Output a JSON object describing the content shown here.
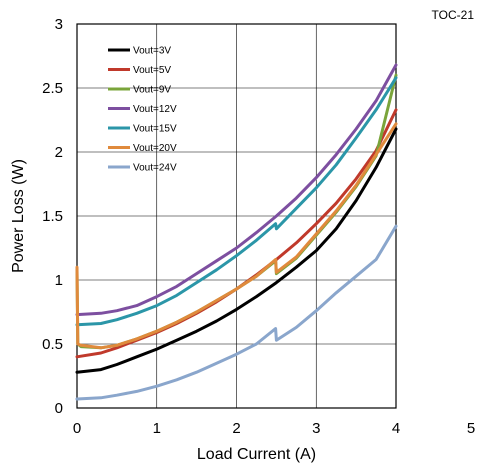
{
  "chart_data": {
    "type": "line",
    "tag": "TOC-21",
    "xlabel": "Load Current (A)",
    "ylabel": "Power Loss (W)",
    "xlim": [
      0,
      5
    ],
    "ylim": [
      0,
      3
    ],
    "x_ticks": [
      "0",
      "1",
      "2",
      "3",
      "4",
      "5"
    ],
    "y_ticks": [
      "0",
      "0.5",
      "1",
      "1.5",
      "2",
      "2.5",
      "3"
    ],
    "grid": true,
    "legend_position": "top-left",
    "series": [
      {
        "name": "Vout=3V",
        "color": "#000000",
        "x": [
          0,
          0.3,
          0.5,
          0.75,
          1,
          1.25,
          1.5,
          1.75,
          2,
          2.25,
          2.5,
          2.75,
          3,
          3.25,
          3.5,
          3.75,
          4
        ],
        "y": [
          0.28,
          0.3,
          0.34,
          0.4,
          0.46,
          0.53,
          0.6,
          0.68,
          0.77,
          0.87,
          0.98,
          1.1,
          1.23,
          1.4,
          1.62,
          1.88,
          2.18
        ]
      },
      {
        "name": "Vout=5V",
        "color": "#c0392b",
        "x": [
          0,
          0.3,
          0.5,
          0.75,
          1,
          1.25,
          1.5,
          1.75,
          2,
          2.25,
          2.5,
          2.75,
          3,
          3.25,
          3.5,
          3.75,
          4
        ],
        "y": [
          0.4,
          0.43,
          0.47,
          0.53,
          0.59,
          0.66,
          0.74,
          0.83,
          0.93,
          1.04,
          1.16,
          1.29,
          1.44,
          1.6,
          1.79,
          2.01,
          2.33
        ]
      },
      {
        "name": "Vout=9V",
        "color": "#7aa43a",
        "x": [
          0,
          0.01,
          0.05,
          0.3,
          0.5,
          0.75,
          1,
          1.25,
          1.5,
          1.75,
          2,
          2.25,
          2.49,
          2.5,
          2.75,
          3,
          3.25,
          3.5,
          3.75,
          4
        ],
        "y": [
          1.08,
          0.5,
          0.48,
          0.47,
          0.49,
          0.54,
          0.6,
          0.67,
          0.75,
          0.84,
          0.93,
          1.03,
          1.15,
          1.05,
          1.17,
          1.35,
          1.53,
          1.73,
          1.97,
          2.6
        ]
      },
      {
        "name": "Vout=12V",
        "color": "#7d4fa0",
        "x": [
          0,
          0.3,
          0.5,
          0.75,
          1,
          1.25,
          1.5,
          1.75,
          2,
          2.25,
          2.5,
          2.75,
          3,
          3.25,
          3.5,
          3.75,
          4
        ],
        "y": [
          0.73,
          0.74,
          0.76,
          0.8,
          0.87,
          0.95,
          1.05,
          1.15,
          1.25,
          1.37,
          1.5,
          1.64,
          1.8,
          1.98,
          2.18,
          2.4,
          2.68
        ]
      },
      {
        "name": "Vout=15V",
        "color": "#2b96a8",
        "x": [
          0,
          0.3,
          0.5,
          0.75,
          1,
          1.25,
          1.5,
          1.75,
          2,
          2.25,
          2.49,
          2.5,
          2.75,
          3,
          3.25,
          3.5,
          3.75,
          4
        ],
        "y": [
          0.65,
          0.66,
          0.69,
          0.74,
          0.8,
          0.88,
          0.98,
          1.08,
          1.19,
          1.31,
          1.44,
          1.4,
          1.56,
          1.72,
          1.9,
          2.11,
          2.33,
          2.58
        ]
      },
      {
        "name": "Vout=20V",
        "color": "#e08a3c",
        "x": [
          0,
          0.01,
          0.05,
          0.3,
          0.5,
          0.75,
          1,
          1.25,
          1.5,
          1.75,
          2,
          2.25,
          2.49,
          2.5,
          2.75,
          3,
          3.25,
          3.5,
          3.75,
          4
        ],
        "y": [
          1.1,
          0.5,
          0.49,
          0.47,
          0.49,
          0.54,
          0.6,
          0.67,
          0.75,
          0.84,
          0.93,
          1.03,
          1.16,
          1.06,
          1.18,
          1.36,
          1.54,
          1.74,
          1.98,
          2.22
        ]
      },
      {
        "name": "Vout=24V",
        "color": "#8aa6cc",
        "x": [
          0,
          0.3,
          0.5,
          0.75,
          1,
          1.25,
          1.5,
          1.75,
          2,
          2.25,
          2.49,
          2.5,
          2.75,
          3,
          3.25,
          3.5,
          3.75,
          4
        ],
        "y": [
          0.07,
          0.08,
          0.1,
          0.13,
          0.17,
          0.22,
          0.28,
          0.35,
          0.42,
          0.5,
          0.62,
          0.53,
          0.63,
          0.76,
          0.9,
          1.03,
          1.16,
          1.42
        ]
      }
    ]
  }
}
